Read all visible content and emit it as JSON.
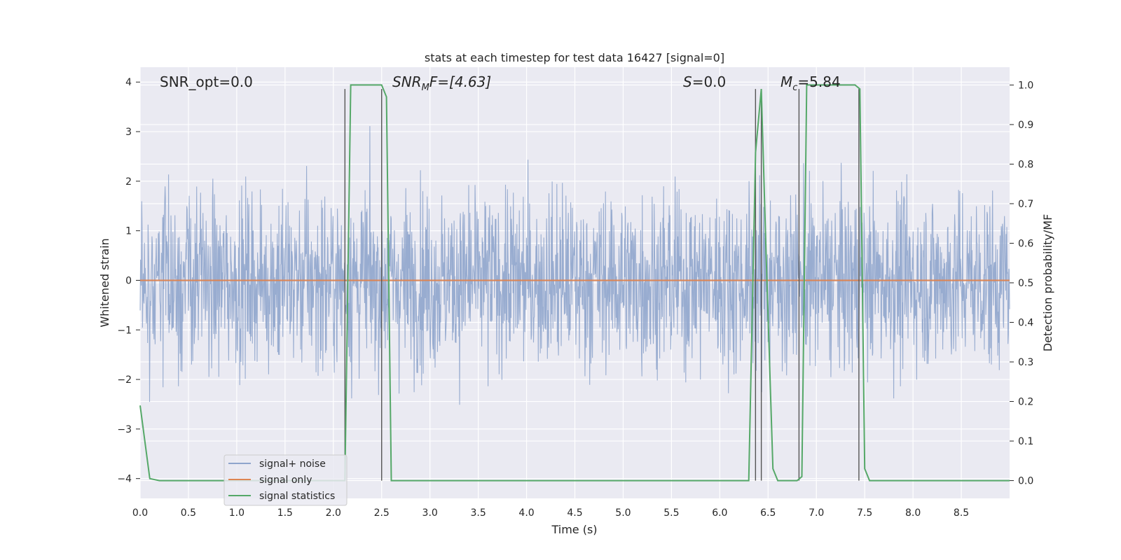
{
  "chart_data": {
    "type": "line",
    "title": "stats at each timestep for test data 16427 [signal=0]",
    "xlabel": "Time (s)",
    "ylabel_left": "Whitened strain",
    "ylabel_right": "Detection probability/MF",
    "xlim": [
      0.0,
      9.0
    ],
    "ylim_left": [
      -4.4,
      4.3
    ],
    "ylim_right": [
      -0.045,
      1.045
    ],
    "xticks": [
      "0.0",
      "0.5",
      "1.0",
      "1.5",
      "2.0",
      "2.5",
      "3.0",
      "3.5",
      "4.0",
      "4.5",
      "5.0",
      "5.5",
      "6.0",
      "6.5",
      "7.0",
      "7.5",
      "8.0",
      "8.5"
    ],
    "yticks_left": [
      "4",
      "3",
      "2",
      "1",
      "0",
      "−1",
      "−2",
      "−3",
      "−4"
    ],
    "yticks_right": [
      "1.0",
      "0.9",
      "0.8",
      "0.7",
      "0.6",
      "0.5",
      "0.4",
      "0.3",
      "0.2",
      "0.1",
      "0.0"
    ],
    "grid": true,
    "legend_position": "lower-left",
    "annotations": {
      "snr_opt": "SNR_opt=0.0",
      "snr_mf_main": "SNR",
      "snr_mf_sub": "M",
      "snr_mf_rest": "F=[4.63]",
      "s_main": "S",
      "s_rest": "=0.0",
      "mc_main": "M",
      "mc_sub": "c",
      "mc_rest": "=5.84"
    },
    "series": [
      {
        "name": "signal+ noise",
        "color": "#8fa5cc",
        "description": "whitened strain noise, fluctuating roughly between -3.5 and 3.5"
      },
      {
        "name": "signal only",
        "color": "#dd8452",
        "x": [
          0.0,
          9.0
        ],
        "y": [
          0.0,
          0.0
        ]
      },
      {
        "name": "signal statistics",
        "color": "#55a868",
        "x": [
          0.0,
          0.1,
          0.2,
          1.0,
          2.0,
          2.12,
          2.18,
          2.5,
          2.55,
          2.6,
          3.0,
          4.0,
          5.0,
          6.0,
          6.3,
          6.37,
          6.43,
          6.48,
          6.55,
          6.6,
          6.8,
          6.85,
          6.9,
          7.0,
          7.4,
          7.45,
          7.5,
          7.55,
          8.0,
          9.0
        ],
        "y": [
          0.19,
          0.005,
          0.0,
          0.0,
          0.0,
          0.0,
          1.0,
          1.0,
          0.97,
          0.0,
          0.0,
          0.0,
          0.0,
          0.0,
          0.0,
          0.83,
          0.99,
          0.57,
          0.03,
          0.0,
          0.0,
          0.01,
          1.0,
          1.0,
          1.0,
          0.99,
          0.03,
          0.0,
          0.0,
          0.0
        ]
      }
    ],
    "vertical_markers": [
      2.12,
      2.5,
      6.37,
      6.43,
      6.82,
      7.44
    ]
  }
}
